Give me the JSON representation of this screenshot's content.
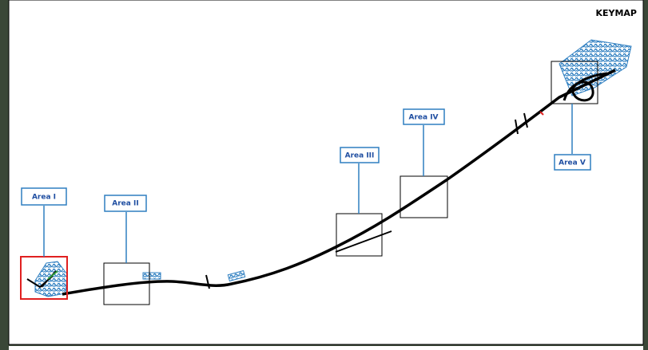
{
  "title": "KEYMAP",
  "areas": [
    {
      "label": "Area I"
    },
    {
      "label": "Area II"
    },
    {
      "label": "Area III"
    },
    {
      "label": "Area IV"
    },
    {
      "label": "Area V"
    }
  ]
}
